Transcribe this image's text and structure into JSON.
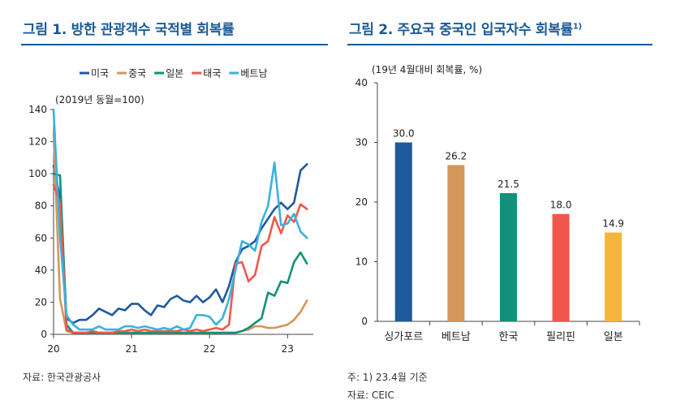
{
  "figure1": {
    "title": "그림 1. 방한 관광객수 국적별 회복률",
    "source": "자료: 한국관광공사",
    "chart_data": {
      "type": "line",
      "unit_label": "(2019년 동월=100)",
      "xlim": [
        2020.0,
        2023.33
      ],
      "ylim": [
        0,
        140
      ],
      "yticks": [
        0,
        20,
        40,
        60,
        80,
        100,
        120,
        140
      ],
      "xticks": [
        {
          "value": 2020,
          "label": "20"
        },
        {
          "value": 2021,
          "label": "21"
        },
        {
          "value": 2022,
          "label": "22"
        },
        {
          "value": 2023,
          "label": "23"
        }
      ],
      "grid": false,
      "legend_position": "top",
      "series": [
        {
          "name": "미국",
          "color": "#1f5a9c",
          "x": [
            2020.0,
            2020.083,
            2020.167,
            2020.25,
            2020.333,
            2020.417,
            2020.5,
            2020.583,
            2020.667,
            2020.75,
            2020.833,
            2020.917,
            2021.0,
            2021.083,
            2021.167,
            2021.25,
            2021.333,
            2021.417,
            2021.5,
            2021.583,
            2021.667,
            2021.75,
            2021.833,
            2021.917,
            2022.0,
            2022.083,
            2022.167,
            2022.25,
            2022.333,
            2022.417,
            2022.5,
            2022.583,
            2022.667,
            2022.75,
            2022.833,
            2022.917,
            2023.0,
            2023.083,
            2023.167,
            2023.25
          ],
          "y": [
            105,
            85,
            10,
            7,
            9,
            9,
            12,
            16,
            14,
            12,
            16,
            15,
            19,
            19,
            15,
            12,
            18,
            17,
            22,
            24,
            21,
            20,
            24,
            20,
            23,
            28,
            20,
            30,
            45,
            53,
            55,
            58,
            66,
            72,
            78,
            82,
            78,
            82,
            102,
            106
          ]
        },
        {
          "name": "중국",
          "color": "#d4975a",
          "x": [
            2020.0,
            2020.083,
            2020.167,
            2020.25,
            2020.333,
            2020.417,
            2020.5,
            2020.583,
            2020.667,
            2020.75,
            2020.833,
            2020.917,
            2021.0,
            2021.083,
            2021.167,
            2021.25,
            2021.333,
            2021.417,
            2021.5,
            2021.583,
            2021.667,
            2021.75,
            2021.833,
            2021.917,
            2022.0,
            2022.083,
            2022.167,
            2022.25,
            2022.333,
            2022.417,
            2022.5,
            2022.583,
            2022.667,
            2022.75,
            2022.833,
            2022.917,
            2023.0,
            2023.083,
            2023.167,
            2023.25
          ],
          "y": [
            125,
            22,
            2,
            1,
            1,
            1,
            1,
            1,
            1,
            1,
            1,
            1,
            1,
            1,
            1,
            1,
            1,
            1,
            1,
            1,
            1,
            1,
            1,
            1,
            1,
            1,
            1,
            1,
            1,
            2,
            3,
            5,
            5,
            4,
            4,
            5,
            6,
            9,
            14,
            21
          ]
        },
        {
          "name": "일본",
          "color": "#12917a",
          "x": [
            2020.0,
            2020.083,
            2020.167,
            2020.25,
            2020.333,
            2020.417,
            2020.5,
            2020.583,
            2020.667,
            2020.75,
            2020.833,
            2020.917,
            2021.0,
            2021.083,
            2021.167,
            2021.25,
            2021.333,
            2021.417,
            2021.5,
            2021.583,
            2021.667,
            2021.75,
            2021.833,
            2021.917,
            2022.0,
            2022.083,
            2022.167,
            2022.25,
            2022.333,
            2022.417,
            2022.5,
            2022.583,
            2022.667,
            2022.75,
            2022.833,
            2022.917,
            2023.0,
            2023.083,
            2023.167,
            2023.25
          ],
          "y": [
            100,
            99,
            6,
            1,
            1,
            1,
            1,
            1,
            1,
            1,
            1,
            1,
            1,
            1,
            1,
            1,
            1,
            1,
            1,
            1,
            1,
            1,
            1,
            1,
            1,
            1,
            1,
            1,
            1,
            2,
            4,
            7,
            10,
            26,
            24,
            33,
            32,
            45,
            51,
            44
          ]
        },
        {
          "name": "태국",
          "color": "#f0574a",
          "x": [
            2020.0,
            2020.083,
            2020.167,
            2020.25,
            2020.333,
            2020.417,
            2020.5,
            2020.583,
            2020.667,
            2020.75,
            2020.833,
            2020.917,
            2021.0,
            2021.083,
            2021.167,
            2021.25,
            2021.333,
            2021.417,
            2021.5,
            2021.583,
            2021.667,
            2021.75,
            2021.833,
            2021.917,
            2022.0,
            2022.083,
            2022.167,
            2022.25,
            2022.333,
            2022.417,
            2022.5,
            2022.583,
            2022.667,
            2022.75,
            2022.833,
            2022.917,
            2023.0,
            2023.083,
            2023.167,
            2023.25
          ],
          "y": [
            93,
            82,
            3,
            1,
            1,
            1,
            2,
            1,
            1,
            1,
            2,
            2,
            3,
            2,
            3,
            2,
            2,
            2,
            2,
            2,
            3,
            2,
            3,
            2,
            3,
            4,
            3,
            6,
            44,
            45,
            33,
            37,
            55,
            58,
            73,
            63,
            74,
            70,
            81,
            78
          ]
        },
        {
          "name": "베트남",
          "color": "#3bb1dd",
          "x": [
            2020.0,
            2020.083,
            2020.167,
            2020.25,
            2020.333,
            2020.417,
            2020.5,
            2020.583,
            2020.667,
            2020.75,
            2020.833,
            2020.917,
            2021.0,
            2021.083,
            2021.167,
            2021.25,
            2021.333,
            2021.417,
            2021.5,
            2021.583,
            2021.667,
            2021.75,
            2021.833,
            2021.917,
            2022.0,
            2022.083,
            2022.167,
            2022.25,
            2022.333,
            2022.417,
            2022.5,
            2022.583,
            2022.667,
            2022.75,
            2022.833,
            2022.917,
            2023.0,
            2023.083,
            2023.167,
            2023.25
          ],
          "y": [
            140,
            60,
            12,
            6,
            3,
            3,
            3,
            5,
            3,
            3,
            3,
            5,
            5,
            4,
            5,
            4,
            3,
            4,
            3,
            5,
            3,
            4,
            12,
            12,
            11,
            6,
            10,
            22,
            40,
            58,
            56,
            52,
            70,
            80,
            107,
            68,
            69,
            75,
            64,
            60
          ]
        }
      ]
    }
  },
  "figure2": {
    "title": "그림 2. 주요국 중국인 입국자수 회복률",
    "title_sup": "1)",
    "note": "주: 1) 23.4월 기준",
    "source": "자료: CEIC",
    "chart_data": {
      "type": "bar",
      "unit_label": "(19년 4월대비 회복률, %)",
      "categories": [
        "싱가포르",
        "베트남",
        "한국",
        "필리핀",
        "일본"
      ],
      "values": [
        30.0,
        26.2,
        21.5,
        18.0,
        14.9
      ],
      "value_labels": [
        "30.0",
        "26.2",
        "21.5",
        "18.0",
        "14.9"
      ],
      "colors": [
        "#1f5a9c",
        "#d4975a",
        "#12917a",
        "#f0574a",
        "#f5b53a"
      ],
      "ylim": [
        0,
        40
      ],
      "yticks": [
        0,
        10,
        20,
        30,
        40
      ],
      "grid": false
    }
  }
}
